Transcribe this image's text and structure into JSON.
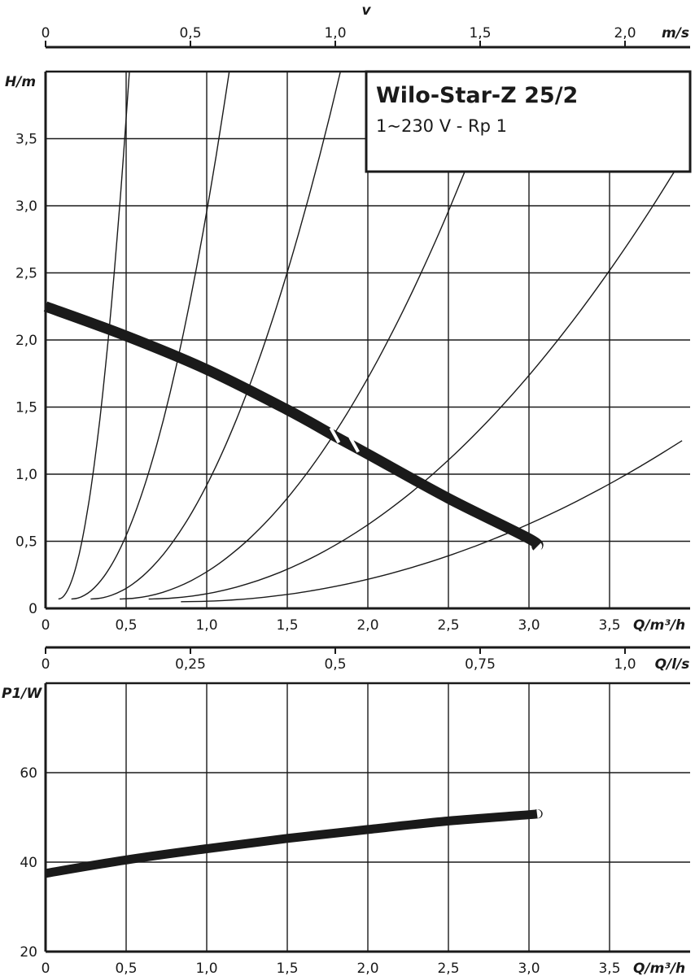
{
  "chart_data": [
    {
      "type": "line",
      "title": "Wilo-Star-Z 25/2",
      "subtitle": "1~230 V - Rp 1",
      "xlabel": "Q/m³/h",
      "ylabel": "H/m",
      "xlim": [
        0,
        4
      ],
      "ylim": [
        0,
        4
      ],
      "x_ticks": [
        "0",
        "0,5",
        "1,0",
        "1,5",
        "2,0",
        "2,5",
        "3,0",
        "3,5"
      ],
      "y_ticks": [
        "0",
        "0,5",
        "1,0",
        "1,5",
        "2,0",
        "2,5",
        "3,0",
        "3,5"
      ],
      "grid": true,
      "secondary_x_top": {
        "label_prefix": "v",
        "unit": "m/s",
        "ticks": [
          "0",
          "0,5",
          "1,0",
          "1,5",
          "2,0"
        ]
      },
      "series": [
        {
          "role": "pump-curve",
          "x": [
            0,
            0.5,
            1.0,
            1.5,
            1.8,
            2.0,
            2.5,
            3.0,
            3.05
          ],
          "y": [
            2.25,
            2.03,
            1.78,
            1.48,
            1.28,
            1.15,
            0.82,
            0.52,
            0.46
          ]
        },
        {
          "role": "system-curve",
          "x": [
            0.08,
            0.52
          ],
          "y": [
            0.07,
            4.0
          ]
        },
        {
          "role": "system-curve",
          "x": [
            0.16,
            1.14
          ],
          "y": [
            0.07,
            4.0
          ]
        },
        {
          "role": "system-curve",
          "x": [
            0.28,
            1.83
          ],
          "y": [
            0.07,
            4.0
          ]
        },
        {
          "role": "system-curve",
          "x": [
            0.46,
            2.6
          ],
          "y": [
            0.07,
            3.25
          ]
        },
        {
          "role": "system-curve",
          "x": [
            0.64,
            3.9
          ],
          "y": [
            0.07,
            3.25
          ]
        },
        {
          "role": "system-curve",
          "x": [
            0.84,
            3.95
          ],
          "y": [
            0.05,
            1.25
          ]
        }
      ]
    },
    {
      "type": "line",
      "xlabel": "Q/m³/h",
      "ylabel": "P1/W",
      "xlim": [
        0,
        4
      ],
      "ylim": [
        20,
        80
      ],
      "x_ticks": [
        "0",
        "0,5",
        "1,0",
        "1,5",
        "2,0",
        "2,5",
        "3,0",
        "3,5"
      ],
      "y_ticks": [
        "20",
        "40",
        "60"
      ],
      "grid": true,
      "secondary_x_top": {
        "unit": "Q/l/s",
        "ticks": [
          "0",
          "0,25",
          "0,5",
          "0,75",
          "1,0"
        ]
      },
      "series": [
        {
          "role": "power-curve",
          "x": [
            0,
            0.5,
            1.0,
            1.5,
            2.0,
            2.5,
            3.0,
            3.05
          ],
          "y": [
            37.5,
            40.5,
            43.0,
            45.3,
            47.3,
            49.2,
            50.6,
            50.8
          ]
        }
      ]
    }
  ]
}
